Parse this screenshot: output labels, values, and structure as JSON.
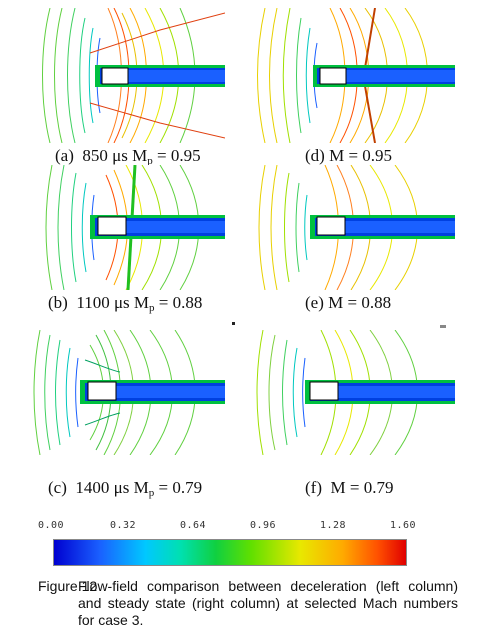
{
  "panels": [
    {
      "id": "a",
      "label": "(a)",
      "caption": "850 μs M",
      "subscript": "p",
      "value": "= 0.95"
    },
    {
      "id": "d",
      "label": "(d)",
      "caption": "M = 0.95",
      "subscript": "",
      "value": ""
    },
    {
      "id": "b",
      "label": "(b)",
      "caption": "1100 μs M",
      "subscript": "p",
      "value": "= 0.88"
    },
    {
      "id": "e",
      "label": "(e)",
      "caption": "M = 0.88",
      "subscript": "",
      "value": ""
    },
    {
      "id": "c",
      "label": "(c)",
      "caption": "1400 μs M",
      "subscript": "p",
      "value": "= 0.79"
    },
    {
      "id": "f",
      "label": "(f)",
      "caption": "M = 0.79",
      "subscript": "",
      "value": ""
    }
  ],
  "colorbar": {
    "ticks": [
      "0.00",
      "0.32",
      "0.64",
      "0.96",
      "1.28",
      "1.60"
    ],
    "min": 0.0,
    "max": 1.6
  },
  "figure_caption": {
    "label": "Figure 12",
    "text": "Flow-field comparison between deceleration (left column) and steady state (right column) at selected Mach numbers for case 3."
  }
}
